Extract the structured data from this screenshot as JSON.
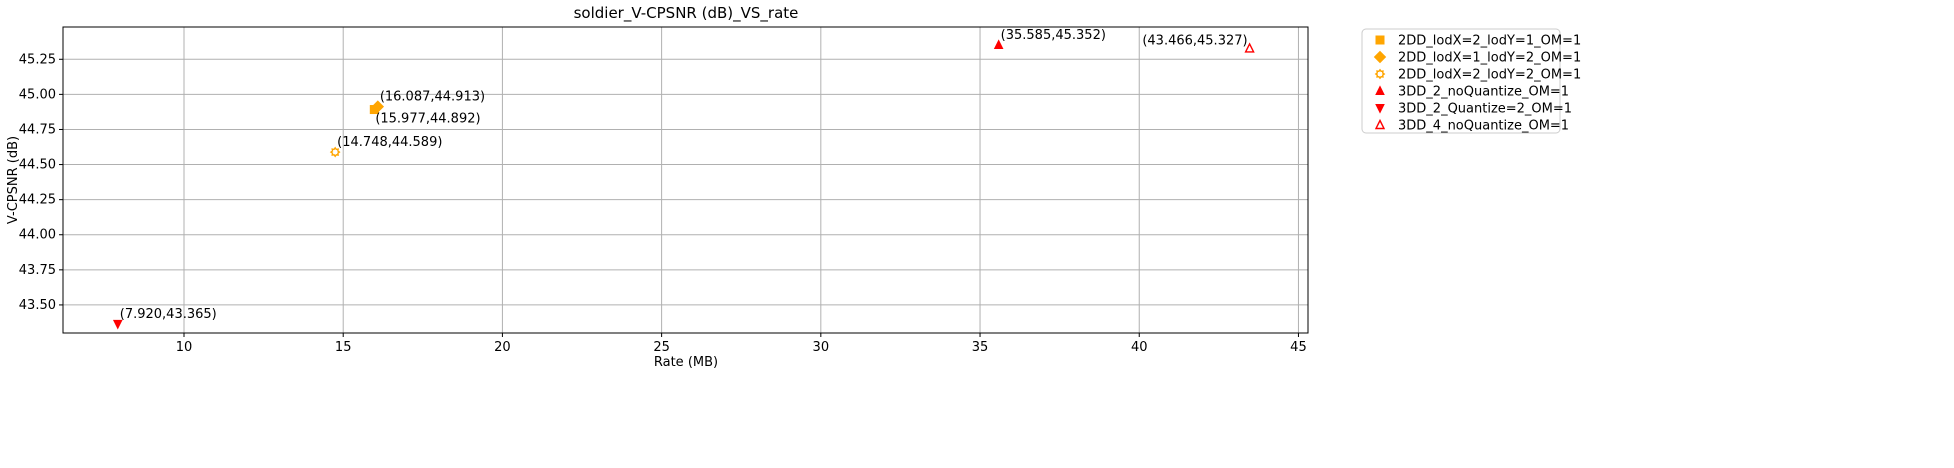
{
  "chart_data": {
    "type": "scatter",
    "title": "soldier_V-CPSNR (dB)_VS_rate",
    "xlabel": "Rate (MB)",
    "ylabel": "V-CPSNR (dB)",
    "xlim": [
      6.2,
      45.3
    ],
    "ylim": [
      43.3,
      45.48
    ],
    "x_ticks": [
      10,
      15,
      20,
      25,
      30,
      35,
      40,
      45
    ],
    "y_ticks": [
      43.5,
      43.75,
      44.0,
      44.25,
      44.5,
      44.75,
      45.0,
      45.25
    ],
    "x_tick_labels": [
      "10",
      "15",
      "20",
      "25",
      "30",
      "35",
      "40",
      "45"
    ],
    "y_tick_labels": [
      "43.50",
      "43.75",
      "44.00",
      "44.25",
      "44.50",
      "44.75",
      "45.00",
      "45.25"
    ],
    "grid": true,
    "legend_position": "outside-top-right",
    "series": [
      {
        "name": "2DD_lodX=2_lodY=1_OM=1",
        "marker": "square",
        "color": "#FFA500",
        "filled": true,
        "points": [
          {
            "x": 15.977,
            "y": 44.892,
            "label": "(15.977,44.892)",
            "label_pos": "below"
          }
        ]
      },
      {
        "name": "2DD_lodX=1_lodY=2_OM=1",
        "marker": "diamond",
        "color": "#FFA500",
        "filled": true,
        "points": [
          {
            "x": 16.087,
            "y": 44.913,
            "label": "(16.087,44.913)",
            "label_pos": "above-right"
          }
        ]
      },
      {
        "name": "2DD_lodX=2_lodY=2_OM=1",
        "marker": "gear",
        "color": "#FFA500",
        "filled": false,
        "points": [
          {
            "x": 14.748,
            "y": 44.589,
            "label": "(14.748,44.589)",
            "label_pos": "above-right"
          }
        ]
      },
      {
        "name": "3DD_2_noQuantize_OM=1",
        "marker": "triangle-up",
        "color": "#FF0000",
        "filled": true,
        "points": [
          {
            "x": 35.585,
            "y": 45.352,
            "label": "(35.585,45.352)",
            "label_pos": "above-right"
          }
        ]
      },
      {
        "name": "3DD_2_Quantize=2_OM=1",
        "marker": "triangle-down",
        "color": "#FF0000",
        "filled": true,
        "points": [
          {
            "x": 7.92,
            "y": 43.365,
            "label": "(7.920,43.365)",
            "label_pos": "above-right"
          }
        ]
      },
      {
        "name": "3DD_4_noQuantize_OM=1",
        "marker": "triangle-up",
        "color": "#FF0000",
        "filled": false,
        "points": [
          {
            "x": 43.466,
            "y": 45.327,
            "label": "(43.466,45.327)",
            "label_pos": "above-left"
          }
        ]
      }
    ]
  }
}
